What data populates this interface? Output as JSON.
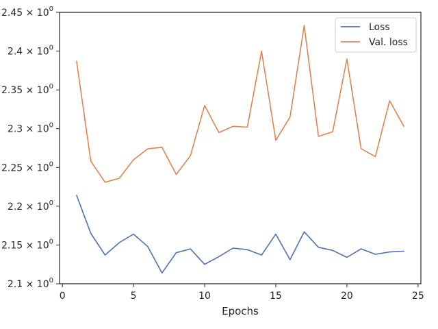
{
  "chart_data": {
    "type": "line",
    "xlabel": "Epochs",
    "ylabel": "",
    "xlim": [
      -0.2,
      25.2
    ],
    "ylim": [
      2.1,
      2.45
    ],
    "xticks": [
      0,
      5,
      10,
      15,
      20,
      25
    ],
    "xtick_labels": [
      "0",
      "5",
      "10",
      "15",
      "20",
      "25"
    ],
    "yticks": [
      2.1,
      2.15,
      2.2,
      2.25,
      2.3,
      2.35,
      2.4,
      2.45
    ],
    "ytick_mantissas": [
      "2.1",
      "2.15",
      "2.2",
      "2.25",
      "2.3",
      "2.35",
      "2.4",
      "2.45"
    ],
    "ytick_times": "×",
    "ytick_base": "10",
    "ytick_exponent": "0",
    "grid": false,
    "legend_position": "top-right",
    "x": [
      1,
      2,
      3,
      4,
      5,
      6,
      7,
      8,
      9,
      10,
      11,
      12,
      13,
      14,
      15,
      16,
      17,
      18,
      19,
      20,
      21,
      22,
      23,
      24
    ],
    "series": [
      {
        "name": "Loss",
        "color": "#4c72b0",
        "values": [
          2.214,
          2.165,
          2.137,
          2.153,
          2.164,
          2.148,
          2.114,
          2.14,
          2.145,
          2.125,
          2.135,
          2.146,
          2.144,
          2.137,
          2.164,
          2.131,
          2.167,
          2.147,
          2.143,
          2.134,
          2.145,
          2.138,
          2.141,
          2.142
        ]
      },
      {
        "name": "Val. loss",
        "color": "#dd8452",
        "values": [
          2.387,
          2.258,
          2.231,
          2.236,
          2.26,
          2.274,
          2.276,
          2.241,
          2.265,
          2.33,
          2.295,
          2.303,
          2.302,
          2.4,
          2.285,
          2.315,
          2.433,
          2.29,
          2.296,
          2.39,
          2.274,
          2.264,
          2.336,
          2.303
        ]
      }
    ]
  }
}
